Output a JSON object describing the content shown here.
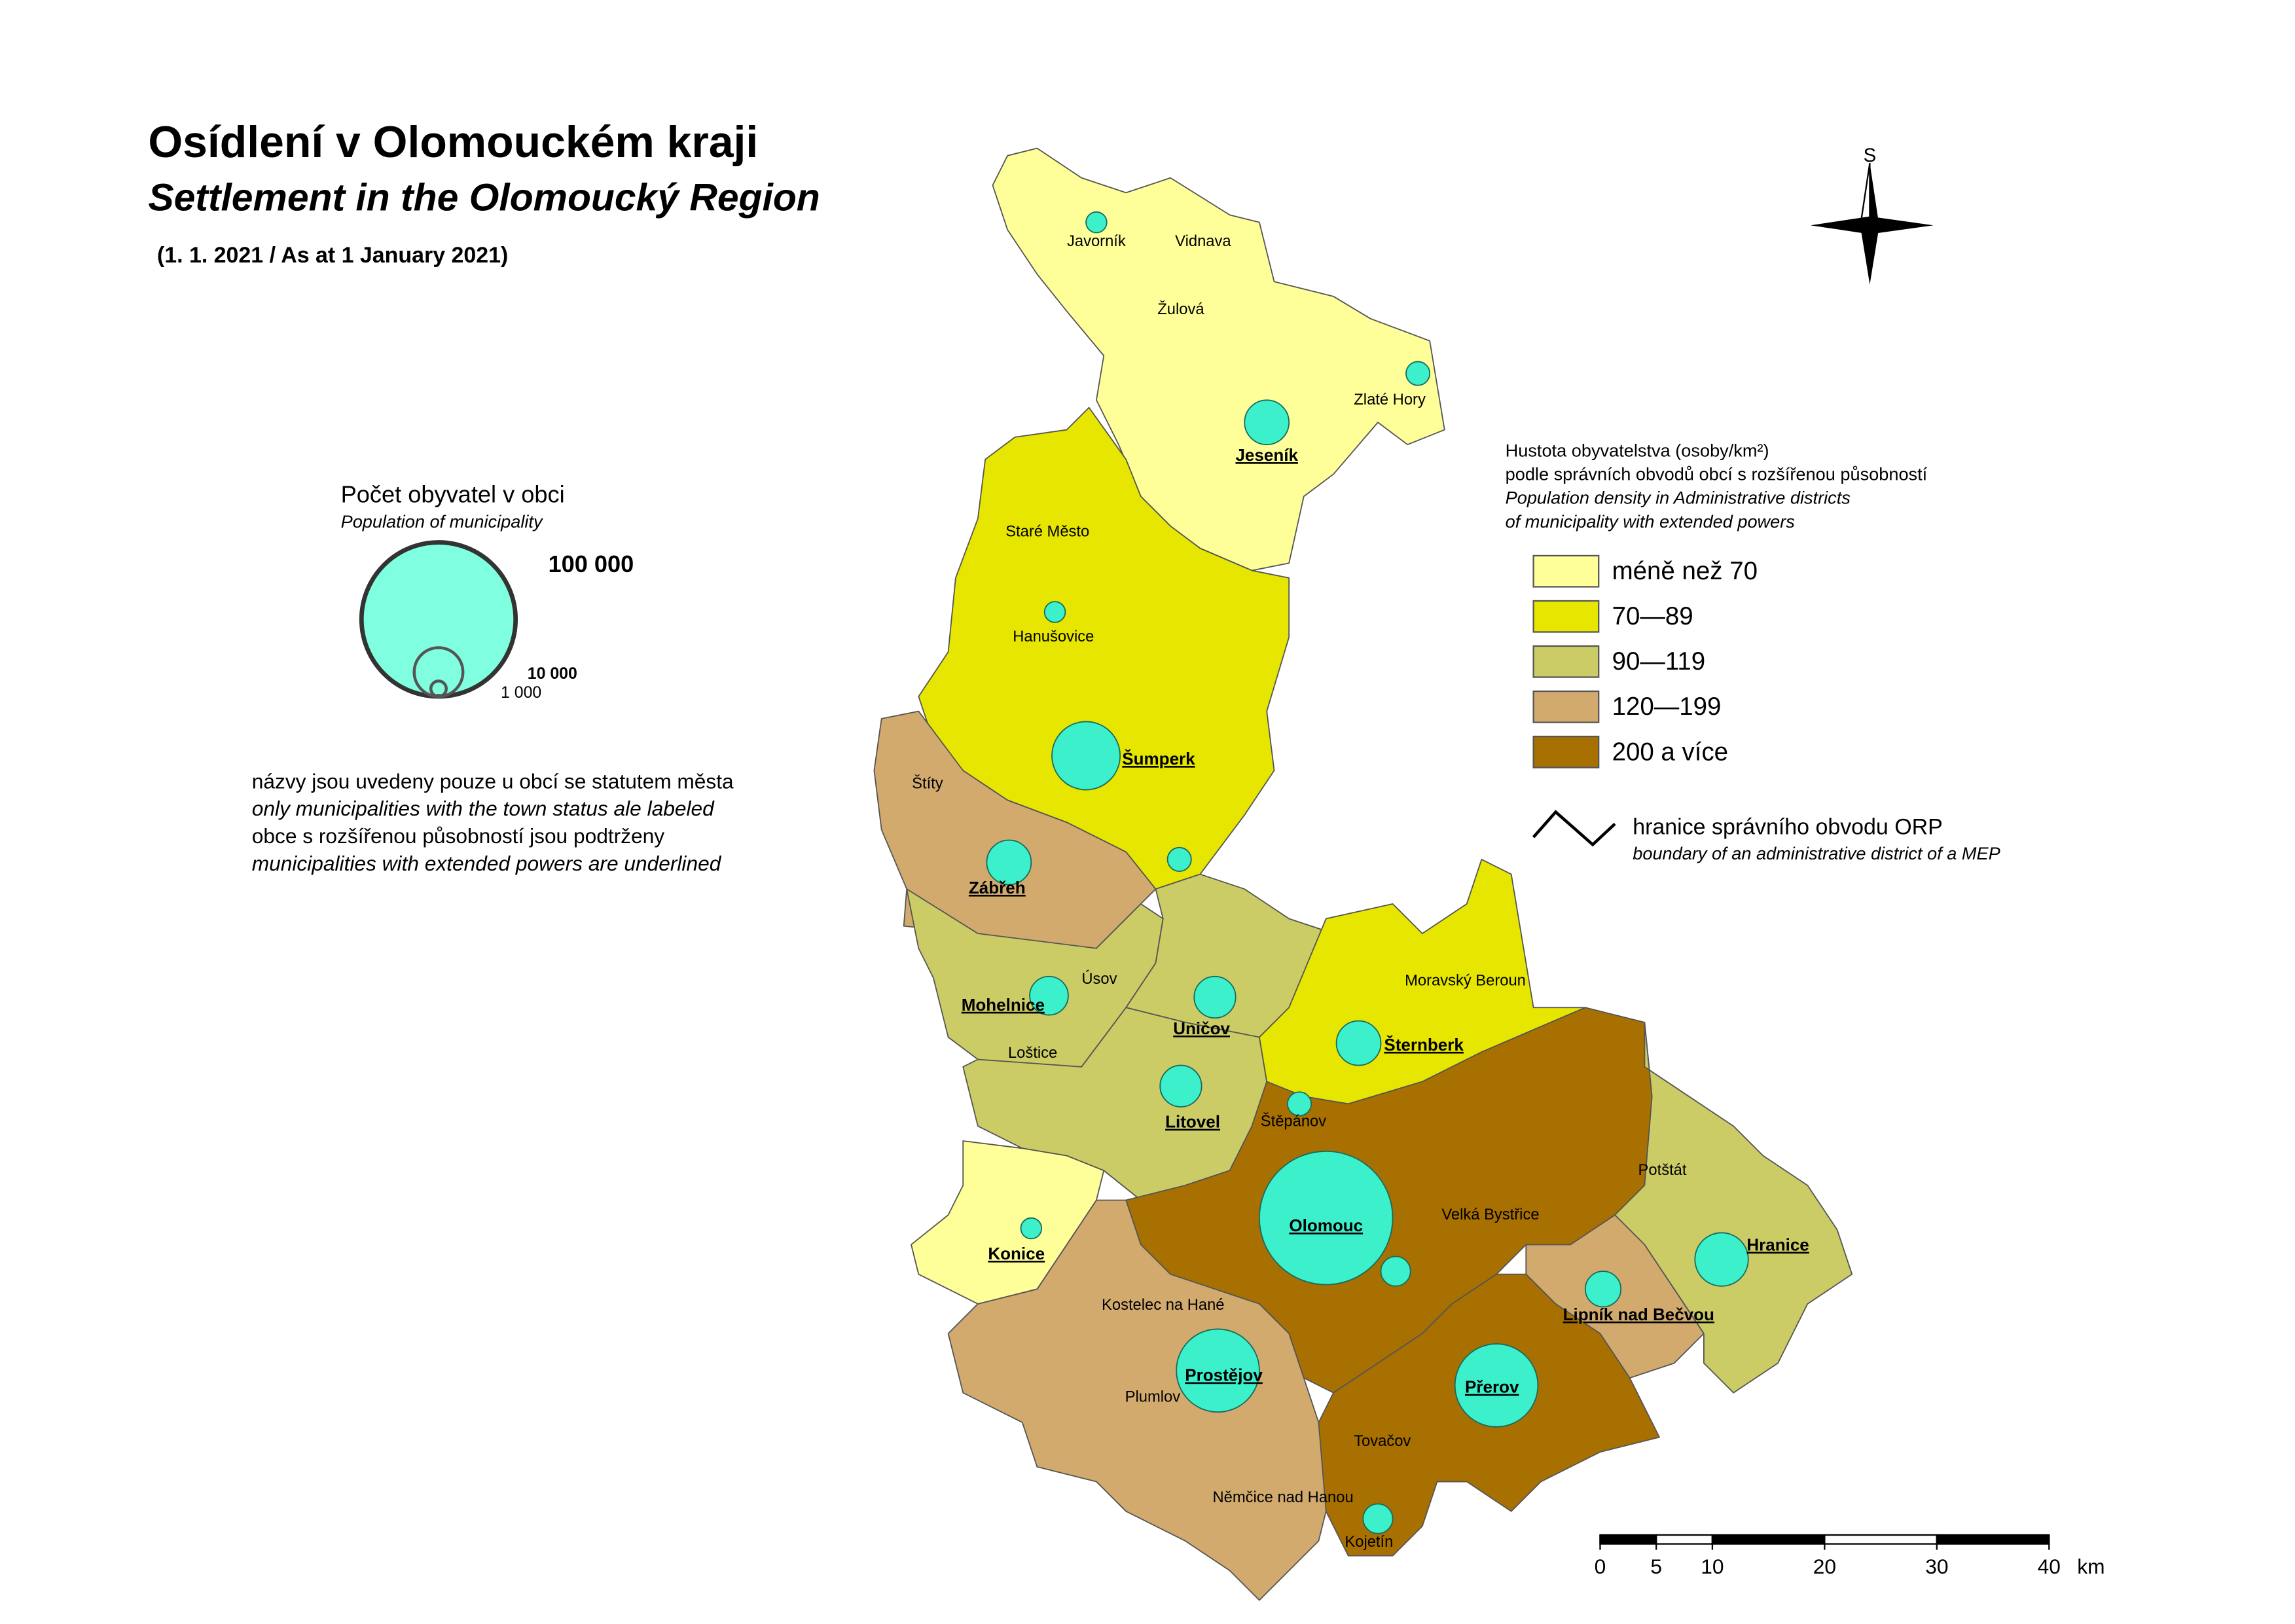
{
  "header": {
    "title": "Osídlení v Olomouckém kraji",
    "subtitle": "Settlement in the Olomoucký Region",
    "date": "(1. 1. 2021 / As at 1 January 2021)"
  },
  "population_legend": {
    "title": "Počet obyvatel v obci",
    "subtitle": "Population of municipality",
    "sizes": [
      {
        "value": 100000,
        "label": "100 000"
      },
      {
        "value": 10000,
        "label": "10 000"
      },
      {
        "value": 1000,
        "label": "1 000"
      }
    ]
  },
  "notes": [
    "názvy jsou uvedeny pouze u obcí se statutem města",
    "only municipalities with the town status ale labeled",
    "obce s rozšířenou působností jsou podtrženy",
    "municipalities with extended powers are underlined"
  ],
  "density_legend": {
    "title": [
      "Hustota obyvatelstva (osoby/km²)",
      "podle správních obvodů obcí s rozšířenou působností",
      "Population density in Administrative districts",
      "of municipality with extended powers"
    ],
    "classes": [
      {
        "label": "méně než 70",
        "color": "#ffff99"
      },
      {
        "label": "70—89",
        "color": "#e6e600"
      },
      {
        "label": "90—119",
        "color": "#cccc66"
      },
      {
        "label": "120—199",
        "color": "#d2aa6e"
      },
      {
        "label": "200 a více",
        "color": "#a87000"
      }
    ]
  },
  "boundary_legend": {
    "label": "hranice správního obvodu ORP",
    "label_en": "boundary of an administrative district of a MEP"
  },
  "compass": "S",
  "scale_bar": {
    "ticks": [
      0,
      5,
      10,
      20,
      30,
      40
    ],
    "unit": "km"
  },
  "towns": [
    {
      "name": "Javorník",
      "underlined": false
    },
    {
      "name": "Vidnava",
      "underlined": false
    },
    {
      "name": "Žulová",
      "underlined": false
    },
    {
      "name": "Zlaté Hory",
      "underlined": false
    },
    {
      "name": "Jeseník",
      "underlined": true
    },
    {
      "name": "Staré Město",
      "underlined": false
    },
    {
      "name": "Hanušovice",
      "underlined": false
    },
    {
      "name": "Šumperk",
      "underlined": true
    },
    {
      "name": "Štíty",
      "underlined": false
    },
    {
      "name": "Zábřeh",
      "underlined": true
    },
    {
      "name": "Úsov",
      "underlined": false
    },
    {
      "name": "Mohelnice",
      "underlined": true
    },
    {
      "name": "Loštice",
      "underlined": false
    },
    {
      "name": "Uničov",
      "underlined": true
    },
    {
      "name": "Moravský Beroun",
      "underlined": false
    },
    {
      "name": "Šternberk",
      "underlined": true
    },
    {
      "name": "Litovel",
      "underlined": true
    },
    {
      "name": "Štěpánov",
      "underlined": false
    },
    {
      "name": "Olomouc",
      "underlined": true
    },
    {
      "name": "Velká Bystřice",
      "underlined": false
    },
    {
      "name": "Potštát",
      "underlined": false
    },
    {
      "name": "Hranice",
      "underlined": true
    },
    {
      "name": "Lipník nad Bečvou",
      "underlined": true
    },
    {
      "name": "Konice",
      "underlined": true
    },
    {
      "name": "Kostelec na Hané",
      "underlined": false
    },
    {
      "name": "Prostějov",
      "underlined": true
    },
    {
      "name": "Plumlov",
      "underlined": false
    },
    {
      "name": "Přerov",
      "underlined": true
    },
    {
      "name": "Tovačov",
      "underlined": false
    },
    {
      "name": "Němčice nad Hanou",
      "underlined": false
    },
    {
      "name": "Kojetín",
      "underlined": false
    }
  ]
}
